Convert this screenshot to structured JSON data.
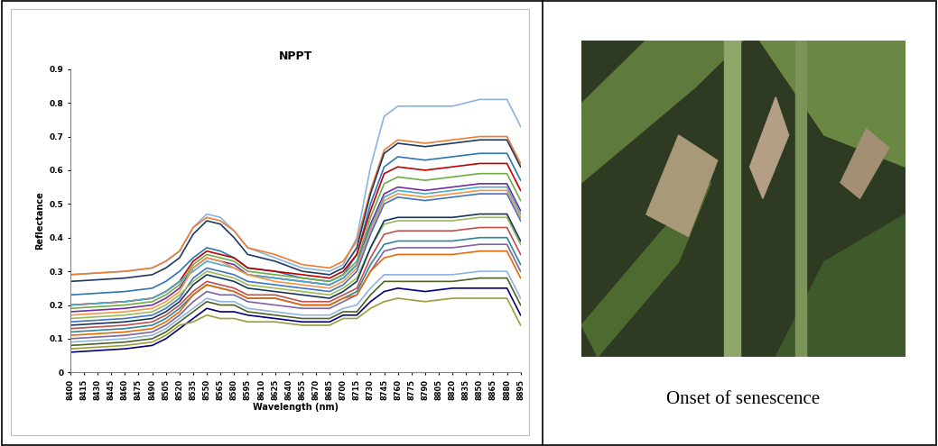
{
  "chart_data": {
    "type": "line",
    "title": "NPPT",
    "x_label": "Wavelength (nm)",
    "y_label": "Reflectance",
    "x": [
      8400,
      8430,
      8460,
      8490,
      8505,
      8520,
      8535,
      8550,
      8565,
      8580,
      8595,
      8625,
      8655,
      8685,
      8700,
      8715,
      8730,
      8745,
      8760,
      8790,
      8820,
      8850,
      8880,
      8895
    ],
    "xlim": [
      8400,
      8895
    ],
    "xticks": [
      8400,
      8415,
      8430,
      8445,
      8460,
      8475,
      8490,
      8505,
      8520,
      8535,
      8550,
      8565,
      8580,
      8595,
      8610,
      8625,
      8640,
      8655,
      8670,
      8685,
      8700,
      8715,
      8730,
      8745,
      8760,
      8775,
      8790,
      8805,
      8820,
      8835,
      8850,
      8865,
      8880,
      8895
    ],
    "ylim": [
      0,
      0.9
    ],
    "yticks": [
      0,
      0.1,
      0.2,
      0.3,
      0.4,
      0.5,
      0.6,
      0.7,
      0.8,
      0.9
    ],
    "grid": false,
    "series": [
      {
        "color": "#8db3e2",
        "values": [
          0.29,
          0.295,
          0.3,
          0.31,
          0.33,
          0.36,
          0.43,
          0.47,
          0.46,
          0.42,
          0.37,
          0.34,
          0.31,
          0.3,
          0.32,
          0.4,
          0.61,
          0.76,
          0.79,
          0.79,
          0.79,
          0.81,
          0.81,
          0.73
        ]
      },
      {
        "color": "#ed7d31",
        "values": [
          0.29,
          0.295,
          0.3,
          0.31,
          0.33,
          0.36,
          0.43,
          0.46,
          0.45,
          0.42,
          0.37,
          0.35,
          0.32,
          0.31,
          0.33,
          0.39,
          0.54,
          0.66,
          0.69,
          0.68,
          0.69,
          0.7,
          0.7,
          0.62
        ]
      },
      {
        "color": "#1f3864",
        "values": [
          0.27,
          0.275,
          0.28,
          0.29,
          0.31,
          0.34,
          0.41,
          0.45,
          0.44,
          0.4,
          0.35,
          0.33,
          0.3,
          0.29,
          0.31,
          0.37,
          0.53,
          0.65,
          0.68,
          0.67,
          0.68,
          0.69,
          0.69,
          0.61
        ]
      },
      {
        "color": "#2e75b6",
        "values": [
          0.23,
          0.235,
          0.24,
          0.25,
          0.27,
          0.3,
          0.34,
          0.37,
          0.36,
          0.34,
          0.31,
          0.3,
          0.28,
          0.27,
          0.29,
          0.35,
          0.5,
          0.61,
          0.64,
          0.63,
          0.64,
          0.65,
          0.65,
          0.57
        ]
      },
      {
        "color": "#c00000",
        "values": [
          0.2,
          0.205,
          0.21,
          0.22,
          0.24,
          0.27,
          0.33,
          0.36,
          0.35,
          0.34,
          0.31,
          0.3,
          0.29,
          0.28,
          0.3,
          0.35,
          0.48,
          0.59,
          0.61,
          0.6,
          0.61,
          0.62,
          0.62,
          0.54
        ]
      },
      {
        "color": "#70ad47",
        "values": [
          0.19,
          0.195,
          0.2,
          0.21,
          0.23,
          0.26,
          0.32,
          0.35,
          0.34,
          0.33,
          0.3,
          0.29,
          0.28,
          0.27,
          0.29,
          0.33,
          0.46,
          0.56,
          0.58,
          0.57,
          0.58,
          0.59,
          0.59,
          0.51
        ]
      },
      {
        "color": "#7030a0",
        "values": [
          0.18,
          0.185,
          0.19,
          0.2,
          0.22,
          0.25,
          0.31,
          0.34,
          0.33,
          0.32,
          0.29,
          0.28,
          0.27,
          0.26,
          0.28,
          0.32,
          0.44,
          0.53,
          0.55,
          0.54,
          0.55,
          0.56,
          0.56,
          0.48
        ]
      },
      {
        "color": "#4bacc6",
        "values": [
          0.2,
          0.205,
          0.21,
          0.22,
          0.24,
          0.27,
          0.3,
          0.33,
          0.32,
          0.31,
          0.29,
          0.28,
          0.27,
          0.26,
          0.28,
          0.32,
          0.43,
          0.52,
          0.54,
          0.53,
          0.54,
          0.55,
          0.55,
          0.47
        ]
      },
      {
        "color": "#f79646",
        "values": [
          0.17,
          0.175,
          0.18,
          0.19,
          0.21,
          0.24,
          0.31,
          0.34,
          0.33,
          0.31,
          0.29,
          0.27,
          0.26,
          0.25,
          0.27,
          0.31,
          0.42,
          0.51,
          0.53,
          0.52,
          0.53,
          0.54,
          0.54,
          0.46
        ]
      },
      {
        "color": "#4472c4",
        "values": [
          0.15,
          0.155,
          0.16,
          0.17,
          0.19,
          0.22,
          0.28,
          0.31,
          0.3,
          0.29,
          0.27,
          0.26,
          0.25,
          0.24,
          0.26,
          0.3,
          0.41,
          0.5,
          0.52,
          0.51,
          0.52,
          0.53,
          0.53,
          0.45
        ]
      },
      {
        "color": "#9bbb59",
        "values": [
          0.16,
          0.165,
          0.17,
          0.18,
          0.2,
          0.23,
          0.27,
          0.3,
          0.29,
          0.28,
          0.26,
          0.25,
          0.24,
          0.23,
          0.25,
          0.28,
          0.37,
          0.44,
          0.45,
          0.45,
          0.45,
          0.46,
          0.46,
          0.38
        ]
      },
      {
        "color": "#17375e",
        "values": [
          0.14,
          0.145,
          0.15,
          0.16,
          0.18,
          0.21,
          0.26,
          0.29,
          0.28,
          0.27,
          0.25,
          0.24,
          0.23,
          0.22,
          0.24,
          0.27,
          0.37,
          0.45,
          0.46,
          0.46,
          0.46,
          0.47,
          0.47,
          0.39
        ]
      },
      {
        "color": "#c0504d",
        "values": [
          0.13,
          0.135,
          0.14,
          0.15,
          0.17,
          0.2,
          0.24,
          0.27,
          0.26,
          0.25,
          0.23,
          0.23,
          0.21,
          0.21,
          0.23,
          0.25,
          0.34,
          0.41,
          0.42,
          0.42,
          0.42,
          0.43,
          0.43,
          0.35
        ]
      },
      {
        "color": "#31859c",
        "values": [
          0.12,
          0.125,
          0.13,
          0.14,
          0.16,
          0.19,
          0.23,
          0.26,
          0.25,
          0.24,
          0.22,
          0.22,
          0.2,
          0.2,
          0.22,
          0.24,
          0.32,
          0.38,
          0.39,
          0.39,
          0.39,
          0.4,
          0.4,
          0.32
        ]
      },
      {
        "color": "#8064a2",
        "values": [
          0.1,
          0.105,
          0.11,
          0.12,
          0.14,
          0.17,
          0.21,
          0.24,
          0.23,
          0.23,
          0.21,
          0.2,
          0.19,
          0.19,
          0.21,
          0.23,
          0.3,
          0.36,
          0.37,
          0.37,
          0.37,
          0.38,
          0.38,
          0.3
        ]
      },
      {
        "color": "#e46c0a",
        "values": [
          0.11,
          0.115,
          0.12,
          0.13,
          0.15,
          0.18,
          0.23,
          0.26,
          0.25,
          0.24,
          0.22,
          0.22,
          0.2,
          0.2,
          0.22,
          0.23,
          0.3,
          0.34,
          0.35,
          0.35,
          0.35,
          0.36,
          0.36,
          0.28
        ]
      },
      {
        "color": "#8eb4e3",
        "values": [
          0.09,
          0.095,
          0.1,
          0.11,
          0.13,
          0.16,
          0.19,
          0.22,
          0.21,
          0.21,
          0.19,
          0.18,
          0.17,
          0.17,
          0.19,
          0.2,
          0.25,
          0.29,
          0.29,
          0.29,
          0.29,
          0.3,
          0.3,
          0.22
        ]
      },
      {
        "color": "#4f6228",
        "values": [
          0.08,
          0.085,
          0.09,
          0.1,
          0.12,
          0.15,
          0.18,
          0.21,
          0.2,
          0.2,
          0.18,
          0.17,
          0.16,
          0.16,
          0.18,
          0.18,
          0.23,
          0.27,
          0.27,
          0.27,
          0.27,
          0.28,
          0.28,
          0.2
        ]
      },
      {
        "color": "#000080",
        "values": [
          0.06,
          0.065,
          0.07,
          0.08,
          0.1,
          0.13,
          0.16,
          0.19,
          0.18,
          0.18,
          0.17,
          0.16,
          0.15,
          0.15,
          0.17,
          0.17,
          0.21,
          0.24,
          0.25,
          0.24,
          0.25,
          0.25,
          0.25,
          0.17
        ]
      },
      {
        "color": "#9c9c3c",
        "values": [
          0.07,
          0.075,
          0.08,
          0.09,
          0.11,
          0.14,
          0.15,
          0.17,
          0.16,
          0.16,
          0.15,
          0.15,
          0.14,
          0.14,
          0.16,
          0.16,
          0.19,
          0.21,
          0.22,
          0.21,
          0.22,
          0.22,
          0.22,
          0.14
        ]
      }
    ]
  },
  "caption": "Onset of senescence"
}
